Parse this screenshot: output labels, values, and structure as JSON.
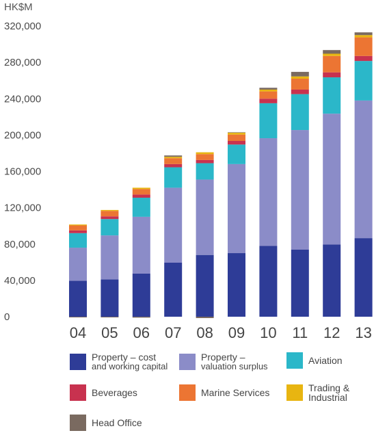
{
  "chart_data": {
    "type": "bar",
    "stacked": true,
    "unit_label": "HK$M",
    "categories": [
      "04",
      "05",
      "06",
      "07",
      "08",
      "09",
      "10",
      "11",
      "12",
      "13"
    ],
    "ylim": [
      0,
      320000
    ],
    "yticks": [
      "0",
      "40,000",
      "80,000",
      "120,000",
      "160,000",
      "200,000",
      "240,000",
      "280,000",
      "320,000"
    ],
    "ytick_values": [
      0,
      40000,
      80000,
      120000,
      160000,
      200000,
      240000,
      280000,
      320000
    ],
    "grid": false,
    "legend_position": "bottom",
    "series": [
      {
        "name": "Property – cost and working capital",
        "color": "#2e3c97",
        "values": [
          39500,
          41000,
          47500,
          59500,
          68000,
          70000,
          78000,
          74000,
          79500,
          86500
        ]
      },
      {
        "name": "Property – valuation surplus",
        "color": "#8b8cc8",
        "values": [
          36500,
          48500,
          62500,
          82500,
          83000,
          98000,
          118500,
          131500,
          144000,
          151500
        ]
      },
      {
        "name": "Aviation",
        "color": "#2bb7c9",
        "values": [
          16000,
          18000,
          21000,
          22500,
          18000,
          21500,
          38500,
          39500,
          40000,
          43500
        ]
      },
      {
        "name": "Beverages",
        "color": "#c8324f",
        "values": [
          3000,
          3000,
          3500,
          3500,
          3500,
          4000,
          5000,
          5000,
          5500,
          5500
        ]
      },
      {
        "name": "Marine Services",
        "color": "#ec7533",
        "values": [
          5500,
          6000,
          6000,
          6500,
          6500,
          7000,
          8000,
          12000,
          18000,
          20500
        ]
      },
      {
        "name": "Trading & Industrial",
        "color": "#e8b511",
        "values": [
          1000,
          1000,
          1500,
          1500,
          2000,
          2000,
          2000,
          2500,
          2500,
          2500
        ]
      },
      {
        "name": "Head Office",
        "color": "#7a6a60",
        "values": [
          -500,
          -500,
          -1000,
          1500,
          -1500,
          500,
          2000,
          5000,
          4000,
          3000
        ]
      }
    ]
  },
  "legend": {
    "items": [
      {
        "line1": "Property – cost",
        "line2": "and working capital",
        "color": "#2e3c97"
      },
      {
        "line1": "Property –",
        "line2": "valuation surplus",
        "color": "#8b8cc8"
      },
      {
        "line1": "Aviation",
        "line2": "",
        "color": "#2bb7c9"
      },
      {
        "line1": "Beverages",
        "line2": "",
        "color": "#c8324f"
      },
      {
        "line1": "Marine Services",
        "line2": "",
        "color": "#ec7533"
      },
      {
        "line1": "Trading &",
        "line2": "Industrial",
        "color": "#e8b511"
      },
      {
        "line1": "Head Office",
        "line2": "",
        "color": "#7a6a60"
      }
    ]
  }
}
